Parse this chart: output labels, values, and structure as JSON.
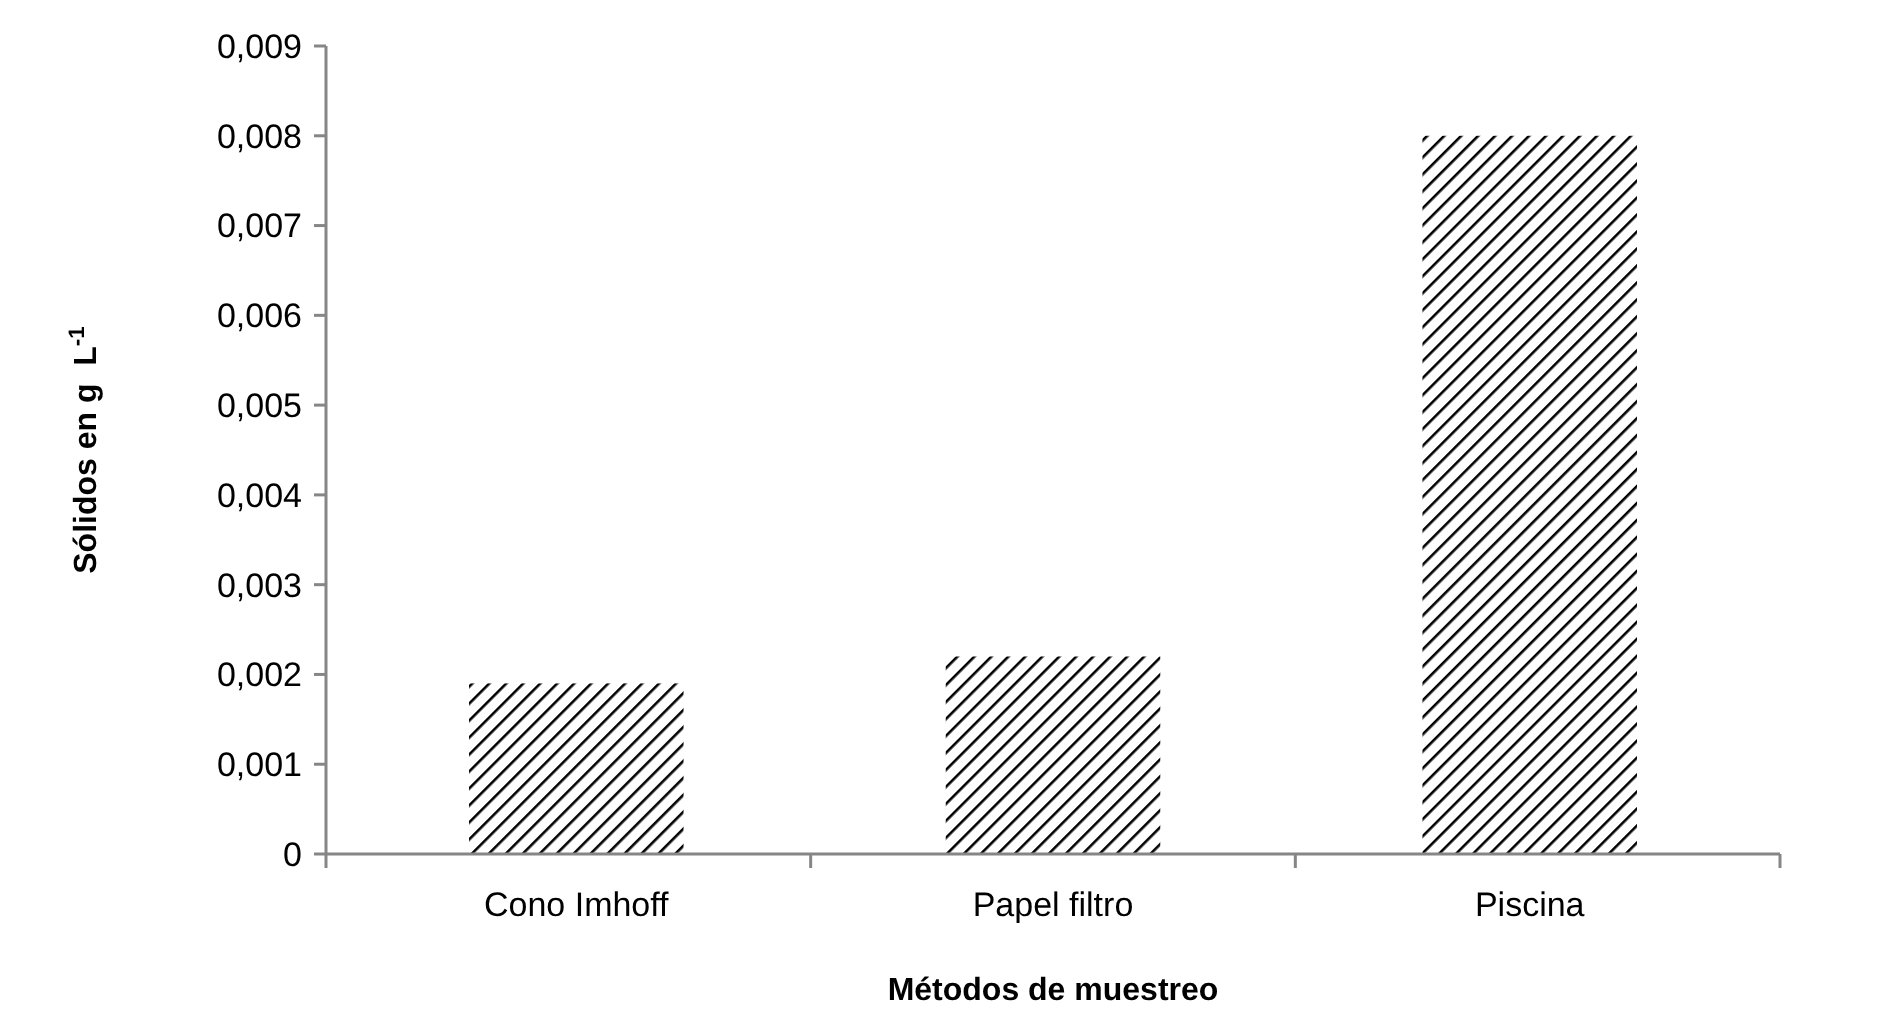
{
  "chart_data": {
    "type": "bar",
    "xlabel": "Métodos de muestreo",
    "ylabel": "Sólidos en g  L$^{-1}$",
    "categories": [
      "Cono Imhoff",
      "Papel filtro",
      "Piscina"
    ],
    "values": [
      0.0019,
      0.0022,
      0.008
    ],
    "color": "#000000",
    "ylim": [
      0,
      0.009
    ],
    "yticks": [
      0,
      {
        "value": 0.001,
        "label": "0,001"
      },
      {
        "value": 0.002,
        "label": "0,002"
      },
      {
        "value": 0.003,
        "label": "0,003"
      },
      {
        "value": 0.004,
        "label": "0,004"
      },
      {
        "value": 0.005,
        "label": "0,005"
      },
      {
        "value": 0.006,
        "label": "0,006"
      },
      {
        "value": 0.007,
        "label": "0,007"
      },
      {
        "value": 0.008,
        "label": "0,008"
      },
      {
        "value": 0.009,
        "label": "0,009"
      }
    ],
    "grid": false
  }
}
